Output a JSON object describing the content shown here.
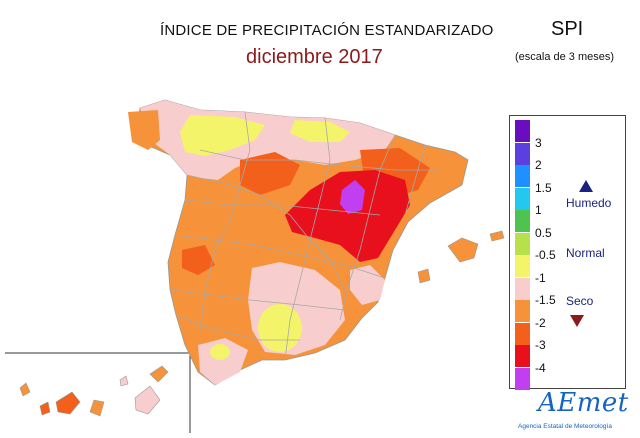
{
  "header": {
    "title": "ÍNDICE DE PRECIPITACIÓN ESTANDARIZADO",
    "period": "diciembre 2017",
    "index_name": "SPI",
    "scale_note": "(escala de 3 meses)"
  },
  "legend": {
    "classes": [
      {
        "label": "",
        "color": "#6a0dbe"
      },
      {
        "label": "3",
        "color": "#5c3fe0"
      },
      {
        "label": "2",
        "color": "#1e90ff"
      },
      {
        "label": "1.5",
        "color": "#24c8ee"
      },
      {
        "label": "1",
        "color": "#4fc34f"
      },
      {
        "label": "0.5",
        "color": "#b8e04a"
      },
      {
        "label": "-0.5",
        "color": "#f4f46a"
      },
      {
        "label": "-1",
        "color": "#f8cdcd"
      },
      {
        "label": "-1.5",
        "color": "#f5923a"
      },
      {
        "label": "-2",
        "color": "#f2601b"
      },
      {
        "label": "-3",
        "color": "#e8101c"
      },
      {
        "label": "-4",
        "color": "#c040f0"
      }
    ],
    "humid_label": "Humedo",
    "normal_label": "Normal",
    "dry_label": "Seco",
    "humid_color": "#1a237e",
    "dry_color": "#8b1a1a"
  },
  "logo": {
    "wordmark": "AEmet",
    "agency": "Agencia Estatal de Meteorología"
  }
}
